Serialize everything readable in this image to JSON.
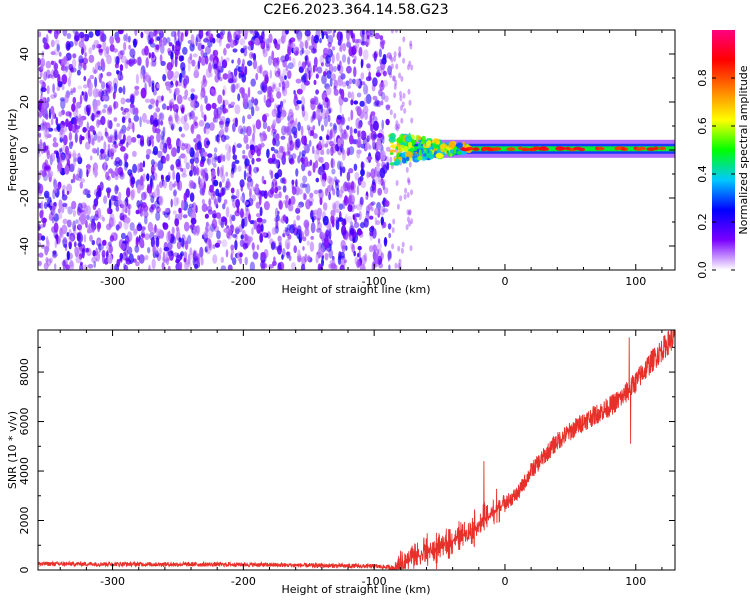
{
  "title": "C2E6.2023.364.14.58.G23",
  "chart_data": [
    {
      "type": "heatmap",
      "xlabel": "Height of straight line (km)",
      "ylabel": "Frequency (Hz)",
      "xlim": [
        -357,
        130
      ],
      "ylim": [
        -50,
        50
      ],
      "xticks": [
        -300,
        -200,
        -100,
        0,
        100
      ],
      "xtick_labels": [
        "-300",
        "-200",
        "-100",
        "0",
        "100"
      ],
      "yticks": [
        -40,
        -20,
        0,
        20,
        40
      ],
      "ytick_labels": [
        "-40",
        "-20",
        "0",
        "20",
        "40"
      ],
      "noise_region": {
        "x": [
          -357,
          -88
        ],
        "y": [
          -50,
          50
        ],
        "amplitude_range": [
          0.0,
          0.3
        ]
      },
      "line_signal": {
        "x": [
          -88,
          130
        ],
        "center_frequency": 0.5,
        "amplitude_range": [
          0.3,
          0.9
        ]
      },
      "colorbar": {
        "label": "Normalized spectral amplitude",
        "range": [
          0.0,
          1.0
        ],
        "ticks": [
          0.0,
          0.2,
          0.4,
          0.6,
          0.8
        ],
        "tick_labels": [
          "0.0",
          "0.2",
          "0.4",
          "0.6",
          "0.8"
        ],
        "colormap": [
          "#ffffff",
          "#7a00ff",
          "#0000ff",
          "#00c8ff",
          "#00ff00",
          "#ffff00",
          "#ff8000",
          "#ff0000",
          "#ff0080"
        ]
      },
      "grid": false
    },
    {
      "type": "line",
      "xlabel": "Height of straight line (km)",
      "ylabel": "SNR (10 * v/v)",
      "xlim": [
        -357,
        130
      ],
      "ylim": [
        0,
        9700
      ],
      "xticks": [
        -300,
        -200,
        -100,
        0,
        100
      ],
      "xtick_labels": [
        "-300",
        "-200",
        "-100",
        "0",
        "100"
      ],
      "yticks": [
        0,
        2000,
        4000,
        6000,
        8000
      ],
      "ytick_labels": [
        "0",
        "2000",
        "4000",
        "6000",
        "8000"
      ],
      "color": "#e8302a",
      "x": [
        -357,
        -300,
        -200,
        -100,
        -85,
        -70,
        -60,
        -50,
        -40,
        -30,
        -20,
        -10,
        0,
        10,
        20,
        40,
        60,
        80,
        90,
        100,
        110,
        120,
        130
      ],
      "y": [
        250,
        240,
        220,
        150,
        100,
        500,
        700,
        900,
        1200,
        1500,
        1800,
        2300,
        2700,
        3100,
        4000,
        5200,
        6000,
        6600,
        7000,
        7600,
        8300,
        8900,
        9500
      ],
      "spikes": [
        {
          "x": -16,
          "y": 4400
        },
        {
          "x": 95,
          "y": 9400
        },
        {
          "x": 96,
          "y": 5100
        }
      ],
      "grid": false
    }
  ]
}
